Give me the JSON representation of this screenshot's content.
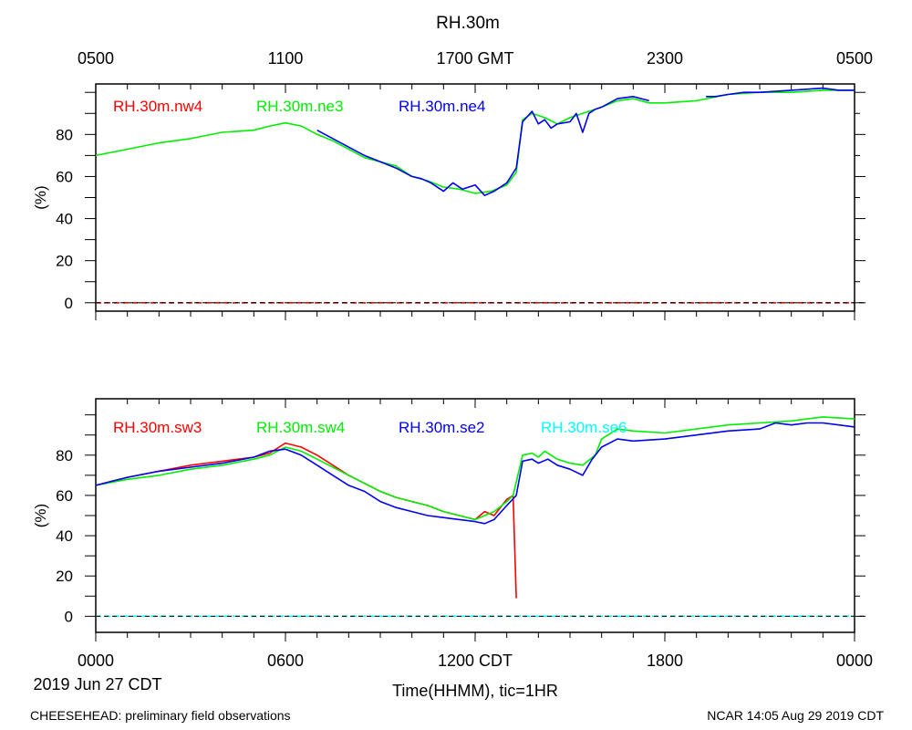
{
  "title": "RH.30m",
  "top_axis_labels": [
    "0500",
    "1100",
    "1700 GMT",
    "2300",
    "0500"
  ],
  "bottom_axis_labels": [
    "0000",
    "0600",
    "1200 CDT",
    "1800",
    "0000"
  ],
  "date_label": "2019 Jun 27 CDT",
  "xlabel": "Time(HHMM), tic=1HR",
  "footer_left": "CHEESEHEAD: preliminary field observations",
  "footer_right": "NCAR 14:05 Aug 29 2019 CDT",
  "colors": {
    "red": "#ff0000",
    "green": "#00ee00",
    "blue": "#0000ee",
    "cyan": "#00ffff"
  },
  "chart_data": [
    {
      "type": "line",
      "panel": "top",
      "ylabel": "(%)",
      "xlim": [
        0,
        24
      ],
      "ylim": [
        -4,
        104
      ],
      "yticks": [
        0,
        20,
        40,
        60,
        80
      ],
      "x_unit": "hours since 0000 CDT",
      "legend": [
        "RH.30m.nw4",
        "RH.30m.ne3",
        "RH.30m.ne4"
      ],
      "series": [
        {
          "name": "RH.30m.nw4",
          "color": "#ff0000",
          "segments": [
            {
              "x": [
                0,
                24
              ],
              "y": [
                0,
                0
              ]
            }
          ]
        },
        {
          "name": "RH.30m.ne3",
          "color": "#00ee00",
          "segments": [
            {
              "x": [
                0,
                1,
                2,
                3,
                4,
                5,
                5.5,
                6,
                6.5,
                7,
                7.5,
                8,
                8.5,
                9,
                9.5,
                10,
                10.5,
                11,
                11.5,
                12,
                12.5,
                13,
                13.3,
                13.5,
                13.8,
                14.2,
                14.6,
                15,
                15.4,
                15.8,
                16,
                16.5,
                17,
                17.5,
                18,
                19,
                20,
                21,
                22,
                23,
                24
              ],
              "y": [
                70,
                73,
                76,
                78,
                81,
                82,
                84,
                85.5,
                84,
                80,
                77,
                73,
                69,
                67,
                65,
                60,
                58,
                55,
                54,
                52,
                53,
                56,
                62,
                87,
                90,
                88,
                85,
                88,
                90,
                92,
                93,
                96,
                97,
                95,
                95,
                96,
                99,
                100,
                100,
                101,
                101
              ]
            }
          ]
        },
        {
          "name": "RH.30m.ne4",
          "color": "#0000ee",
          "segments": [
            {
              "x": [
                7,
                7.5,
                8,
                8.5,
                9,
                9.5,
                10,
                10.3,
                10.6,
                11,
                11.3,
                11.6,
                12,
                12.3,
                12.6,
                13,
                13.3,
                13.5,
                13.8,
                14,
                14.2,
                14.4,
                14.6,
                15,
                15.2,
                15.4,
                15.6,
                15.8,
                16,
                16.5,
                17,
                17.5
              ],
              "y": [
                82,
                78,
                74,
                70,
                67,
                64,
                60,
                59,
                57,
                53,
                57,
                54,
                56,
                51,
                53,
                57,
                64,
                86,
                91,
                85,
                87,
                83,
                85,
                86,
                90,
                81,
                90,
                92,
                93,
                97,
                98,
                96
              ]
            },
            {
              "x": [
                19.3,
                19.6,
                20,
                20.5,
                21,
                22,
                23,
                23.5,
                24
              ],
              "y": [
                98,
                98,
                99,
                100,
                100,
                101,
                102,
                101,
                101
              ]
            }
          ]
        }
      ]
    },
    {
      "type": "line",
      "panel": "bottom",
      "ylabel": "(%)",
      "xlim": [
        0,
        24
      ],
      "ylim": [
        -8,
        108
      ],
      "yticks": [
        0,
        20,
        40,
        60,
        80
      ],
      "x_unit": "hours since 0000 CDT",
      "legend": [
        "RH.30m.sw3",
        "RH.30m.sw4",
        "RH.30m.se2",
        "RH.30m.se6"
      ],
      "series": [
        {
          "name": "RH.30m.sw3",
          "color": "#ff0000",
          "segments": [
            {
              "x": [
                0,
                1,
                2,
                3,
                4,
                5,
                5.5,
                6,
                6.5,
                7,
                7.5,
                8,
                8.5,
                9,
                9.5,
                10,
                10.5,
                11,
                11.5,
                12,
                12.3,
                12.6,
                13,
                13.2,
                13.3
              ],
              "y": [
                65,
                69,
                72,
                75,
                77,
                79,
                81,
                86,
                84,
                80,
                75,
                70,
                66,
                62,
                59,
                57,
                55,
                52,
                50,
                48,
                52,
                50,
                58,
                60,
                9
              ]
            }
          ]
        },
        {
          "name": "RH.30m.sw4",
          "color": "#00ee00",
          "segments": [
            {
              "x": [
                0,
                1,
                2,
                3,
                4,
                5,
                5.5,
                6,
                6.5,
                7,
                7.5,
                8,
                8.5,
                9,
                9.5,
                10,
                10.5,
                11,
                11.5,
                12,
                12.3,
                12.6,
                13,
                13.2,
                13.5,
                13.8,
                14,
                14.2,
                14.6,
                15,
                15.4,
                15.8,
                16,
                16.5,
                17,
                18,
                19,
                20,
                21,
                22,
                23,
                24
              ],
              "y": [
                65,
                68,
                70,
                73,
                75,
                78,
                80,
                84,
                82,
                78,
                74,
                70,
                66,
                62,
                59,
                57,
                55,
                52,
                50,
                48,
                50,
                52,
                57,
                60,
                80,
                81,
                79,
                82,
                78,
                76,
                75,
                80,
                88,
                93,
                92,
                91,
                93,
                95,
                96,
                97,
                99,
                98
              ]
            }
          ]
        },
        {
          "name": "RH.30m.se2",
          "color": "#0000ee",
          "segments": [
            {
              "x": [
                0,
                1,
                2,
                3,
                4,
                5,
                5.5,
                6,
                6.5,
                7,
                7.5,
                8,
                8.5,
                9,
                9.5,
                10,
                10.5,
                11,
                11.5,
                12,
                12.3,
                12.6,
                13,
                13.3,
                13.5,
                13.8,
                14,
                14.3,
                14.6,
                15,
                15.4,
                15.7,
                16,
                16.5,
                17,
                18,
                19,
                20,
                21,
                21.5,
                22,
                22.5,
                23,
                23.5,
                24
              ],
              "y": [
                65,
                69,
                72,
                74,
                76,
                79,
                82,
                83,
                80,
                75,
                70,
                65,
                62,
                57,
                54,
                52,
                50,
                49,
                48,
                47,
                46,
                48,
                55,
                60,
                77,
                78,
                76,
                78,
                75,
                73,
                70,
                78,
                84,
                88,
                87,
                88,
                90,
                92,
                93,
                96,
                95,
                96,
                96,
                95,
                94
              ]
            }
          ]
        },
        {
          "name": "RH.30m.se6",
          "color": "#00ffff",
          "segments": [
            {
              "x": [
                0,
                24
              ],
              "y": [
                0,
                0
              ]
            }
          ]
        }
      ]
    }
  ]
}
